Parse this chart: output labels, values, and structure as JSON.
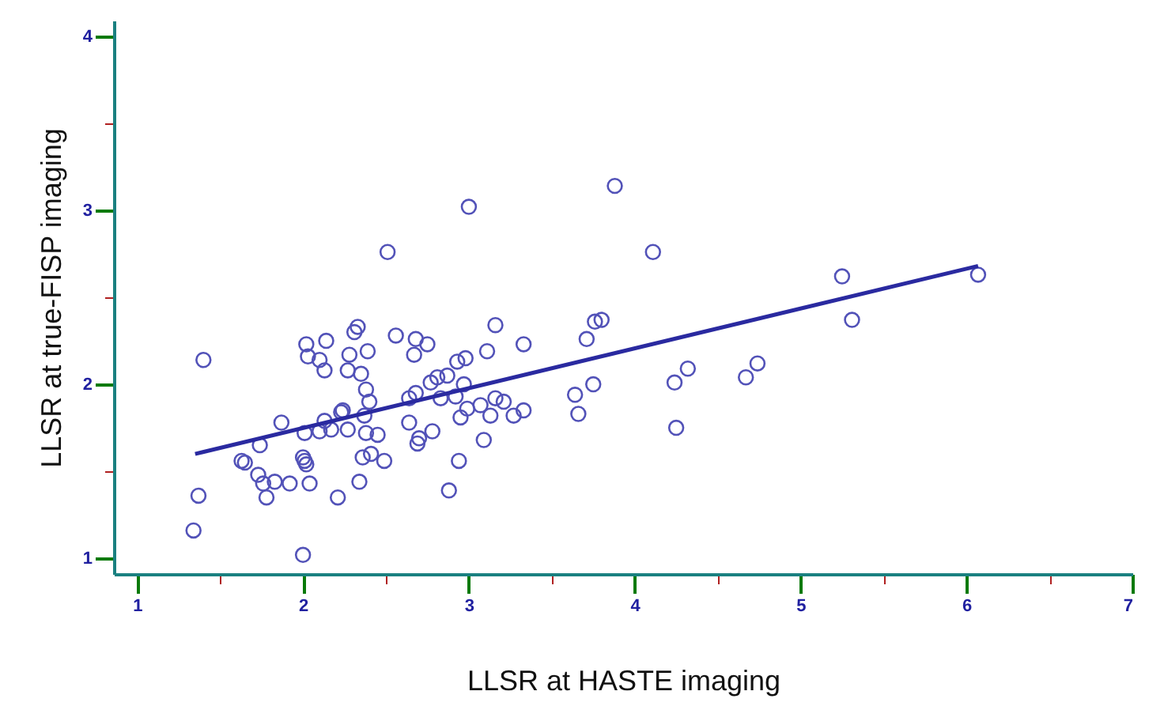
{
  "chart_data": {
    "type": "scatter",
    "xlabel": "LLSR at HASTE imaging",
    "ylabel": "LLSR at true-FISP imaging",
    "grid": false,
    "xlim": [
      0.86,
      7
    ],
    "ylim": [
      0.91,
      4.09
    ],
    "xticks": [
      1,
      {
        "value": 1.5,
        "label": null
      },
      2,
      {
        "value": 2.5,
        "label": null
      },
      3,
      {
        "value": 3.5,
        "label": null
      },
      4,
      {
        "value": 4.5,
        "label": null
      },
      5,
      {
        "value": 5.5,
        "label": null
      },
      6,
      {
        "value": 6.5,
        "label": null
      },
      7
    ],
    "yticks": [
      1,
      {
        "value": 1.5,
        "label": null
      },
      2,
      {
        "value": 2.5,
        "label": null
      },
      3,
      {
        "value": 3.5,
        "label": null
      },
      4
    ],
    "series": [
      {
        "color": "#5252b8",
        "marker": "circle",
        "x": [
          1.4,
          1.87,
          1.74,
          1.63,
          1.65,
          1.73,
          1.76,
          1.78,
          1.83,
          1.92,
          1.37,
          1.34,
          2.0,
          2.0,
          2.01,
          2.02,
          2.04,
          2.21,
          2.34,
          2.36,
          2.41,
          2.49,
          2.01,
          2.1,
          2.17,
          2.27,
          2.13,
          2.23,
          2.24,
          2.38,
          2.45,
          2.37,
          2.4,
          2.38,
          2.35,
          2.27,
          2.13,
          2.1,
          2.03,
          2.02,
          2.14,
          2.28,
          2.39,
          2.31,
          2.33,
          2.56,
          2.68,
          2.67,
          2.64,
          2.68,
          2.64,
          2.7,
          2.69,
          3.88,
          3.0,
          2.51,
          2.75,
          2.93,
          2.98,
          3.11,
          3.16,
          3.33,
          3.71,
          3.76,
          3.8,
          3.75,
          3.64,
          3.66,
          2.87,
          2.81,
          2.77,
          2.97,
          2.83,
          2.92,
          2.99,
          2.95,
          3.07,
          3.16,
          3.21,
          3.13,
          3.27,
          3.33,
          2.78,
          3.09,
          2.94,
          2.88,
          4.11,
          5.25,
          6.07,
          5.31,
          4.32,
          4.24,
          4.25,
          4.74,
          4.67
        ],
        "values": [
          2.14,
          1.78,
          1.65,
          1.56,
          1.55,
          1.48,
          1.43,
          1.35,
          1.44,
          1.43,
          1.36,
          1.16,
          1.02,
          1.58,
          1.56,
          1.54,
          1.43,
          1.35,
          1.44,
          1.58,
          1.6,
          1.56,
          1.72,
          1.73,
          1.74,
          1.74,
          1.79,
          1.84,
          1.85,
          1.72,
          1.71,
          1.82,
          1.9,
          1.97,
          2.06,
          2.08,
          2.08,
          2.14,
          2.16,
          2.23,
          2.25,
          2.17,
          2.19,
          2.3,
          2.33,
          2.28,
          2.26,
          2.17,
          1.78,
          1.95,
          1.92,
          1.69,
          1.66,
          3.14,
          3.02,
          2.76,
          2.23,
          2.13,
          2.15,
          2.19,
          2.34,
          2.23,
          2.26,
          2.36,
          2.37,
          2.0,
          1.94,
          1.83,
          2.05,
          2.04,
          2.01,
          2.0,
          1.92,
          1.93,
          1.86,
          1.81,
          1.88,
          1.92,
          1.9,
          1.82,
          1.82,
          1.85,
          1.73,
          1.68,
          1.56,
          1.39,
          2.76,
          2.62,
          2.63,
          2.37,
          2.09,
          2.01,
          1.75,
          2.12,
          2.04
        ]
      },
      {
        "type": "line",
        "color": "#2a2aa0",
        "x": [
          1.35,
          6.07
        ],
        "values": [
          1.6,
          2.68
        ]
      }
    ]
  }
}
